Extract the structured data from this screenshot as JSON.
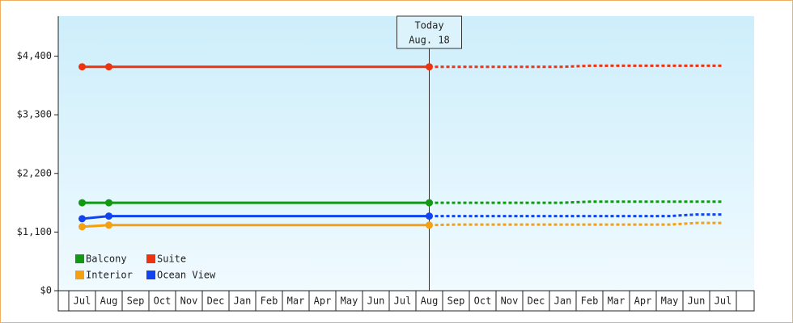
{
  "chart_data": {
    "type": "line",
    "categories": [
      "Jul",
      "Aug",
      "Sep",
      "Oct",
      "Nov",
      "Dec",
      "Jan",
      "Feb",
      "Mar",
      "Apr",
      "May",
      "Jun",
      "Jul",
      "Aug",
      "Sep",
      "Oct",
      "Nov",
      "Dec",
      "Jan",
      "Feb",
      "Mar",
      "Apr",
      "May",
      "Jun",
      "Jul"
    ],
    "ylim": [
      0,
      5150
    ],
    "yticks": [
      {
        "value": 0,
        "label": "$0"
      },
      {
        "value": 1100,
        "label": "$1,100"
      },
      {
        "value": 2200,
        "label": "$2,200"
      },
      {
        "value": 3300,
        "label": "$3,300"
      },
      {
        "value": 4400,
        "label": "$4,400"
      }
    ],
    "annotation": {
      "title": "Today",
      "date": "Aug. 18",
      "index": 13
    },
    "series": [
      {
        "name": "Balcony",
        "color": "#119911",
        "values": [
          1650,
          1650,
          1650,
          1650,
          1650,
          1650,
          1650,
          1650,
          1650,
          1650,
          1650,
          1650,
          1650,
          1650,
          null,
          null,
          null,
          null,
          null,
          null,
          null,
          null,
          null,
          null,
          null
        ],
        "forecast": [
          null,
          null,
          null,
          null,
          null,
          null,
          null,
          null,
          null,
          null,
          null,
          null,
          null,
          1650,
          1650,
          1650,
          1650,
          1650,
          1650,
          1670,
          1670,
          1670,
          1670,
          1670,
          1670
        ]
      },
      {
        "name": "Suite",
        "color": "#ee3311",
        "values": [
          4200,
          4200,
          4200,
          4200,
          4200,
          4200,
          4200,
          4200,
          4200,
          4200,
          4200,
          4200,
          4200,
          4200,
          null,
          null,
          null,
          null,
          null,
          null,
          null,
          null,
          null,
          null,
          null
        ],
        "forecast": [
          null,
          null,
          null,
          null,
          null,
          null,
          null,
          null,
          null,
          null,
          null,
          null,
          null,
          4200,
          4200,
          4200,
          4200,
          4200,
          4200,
          4220,
          4220,
          4220,
          4220,
          4220,
          4220
        ]
      },
      {
        "name": "Interior",
        "color": "#f5a011",
        "values": [
          1200,
          1230,
          1230,
          1230,
          1230,
          1230,
          1230,
          1230,
          1230,
          1230,
          1230,
          1230,
          1230,
          1230,
          null,
          null,
          null,
          null,
          null,
          null,
          null,
          null,
          null,
          null,
          null
        ],
        "forecast": [
          null,
          null,
          null,
          null,
          null,
          null,
          null,
          null,
          null,
          null,
          null,
          null,
          null,
          1230,
          1240,
          1240,
          1240,
          1240,
          1240,
          1240,
          1240,
          1240,
          1240,
          1270,
          1270
        ]
      },
      {
        "name": "Ocean View",
        "color": "#1144ee",
        "values": [
          1350,
          1400,
          1400,
          1400,
          1400,
          1400,
          1400,
          1400,
          1400,
          1400,
          1400,
          1400,
          1400,
          1400,
          null,
          null,
          null,
          null,
          null,
          null,
          null,
          null,
          null,
          null,
          null
        ],
        "forecast": [
          null,
          null,
          null,
          null,
          null,
          null,
          null,
          null,
          null,
          null,
          null,
          null,
          null,
          1400,
          1400,
          1400,
          1400,
          1400,
          1400,
          1400,
          1400,
          1400,
          1400,
          1430,
          1430
        ]
      }
    ]
  }
}
